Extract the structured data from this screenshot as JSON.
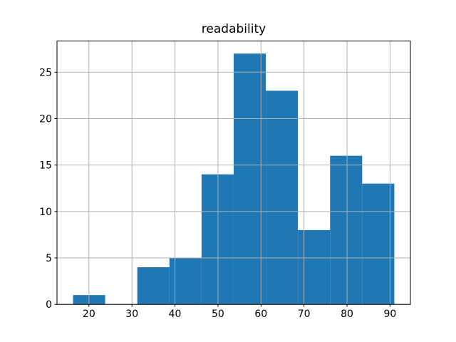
{
  "figure": {
    "background": "#ffffff"
  },
  "chart_data": {
    "type": "bar",
    "subtype": "histogram",
    "title": "readability",
    "xlabel": "",
    "ylabel": "",
    "bin_edges": [
      16.3,
      23.77,
      31.24,
      38.71,
      46.18,
      53.65,
      61.12,
      68.59,
      76.06,
      83.53,
      91.0
    ],
    "counts": [
      1,
      0,
      4,
      5,
      14,
      27,
      23,
      8,
      16,
      13
    ],
    "x_ticks": [
      20,
      30,
      40,
      50,
      60,
      70,
      80,
      90
    ],
    "y_ticks": [
      0,
      5,
      10,
      15,
      20,
      25
    ],
    "xlim": [
      12.57,
      94.74
    ],
    "ylim": [
      0,
      28.35
    ],
    "grid": true,
    "grid_over_bars": true,
    "legend": "none",
    "bar_color": "#1f77b4",
    "grid_color": "#b0b0b0",
    "spine_color": "#000000",
    "tick_label_color": "#000000",
    "title_color": "#000000"
  }
}
